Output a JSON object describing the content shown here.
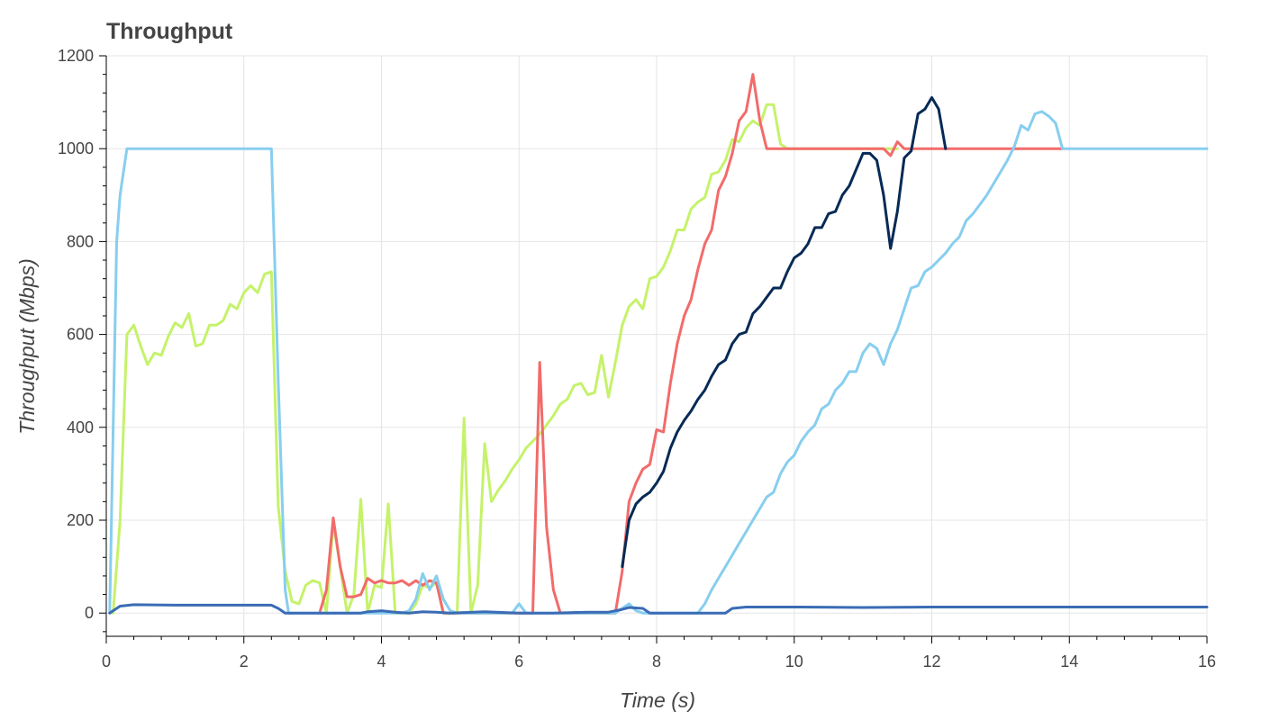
{
  "chart_data": {
    "type": "line",
    "title": "Throughput",
    "xlabel": "Time (s)",
    "ylabel": "Throughput (Mbps)",
    "xlim": [
      0,
      16
    ],
    "ylim": [
      -50,
      1200
    ],
    "xticks": [
      0,
      2,
      4,
      6,
      8,
      10,
      12,
      14,
      16
    ],
    "yticks": [
      0,
      200,
      400,
      600,
      800,
      1000,
      1200
    ],
    "grid": true,
    "legend": "none",
    "series": [
      {
        "color": "#c5f26a",
        "points": [
          [
            0.1,
            0
          ],
          [
            0.2,
            200
          ],
          [
            0.3,
            600
          ],
          [
            0.4,
            620
          ],
          [
            0.5,
            575
          ],
          [
            0.6,
            535
          ],
          [
            0.7,
            560
          ],
          [
            0.8,
            555
          ],
          [
            0.9,
            595
          ],
          [
            1.0,
            625
          ],
          [
            1.1,
            615
          ],
          [
            1.2,
            645
          ],
          [
            1.3,
            575
          ],
          [
            1.4,
            580
          ],
          [
            1.5,
            620
          ],
          [
            1.6,
            620
          ],
          [
            1.7,
            630
          ],
          [
            1.8,
            665
          ],
          [
            1.9,
            655
          ],
          [
            2.0,
            690
          ],
          [
            2.1,
            705
          ],
          [
            2.2,
            690
          ],
          [
            2.3,
            730
          ],
          [
            2.4,
            735
          ],
          [
            2.5,
            230
          ],
          [
            2.6,
            90
          ],
          [
            2.7,
            25
          ],
          [
            2.8,
            20
          ],
          [
            2.9,
            60
          ],
          [
            3.0,
            70
          ],
          [
            3.1,
            65
          ],
          [
            3.2,
            0
          ],
          [
            3.3,
            195
          ],
          [
            3.4,
            100
          ],
          [
            3.5,
            0
          ],
          [
            3.6,
            40
          ],
          [
            3.7,
            245
          ],
          [
            3.8,
            0
          ],
          [
            3.9,
            60
          ],
          [
            4.0,
            55
          ],
          [
            4.1,
            235
          ],
          [
            4.2,
            0
          ],
          [
            4.3,
            0
          ],
          [
            4.4,
            0
          ],
          [
            4.5,
            20
          ],
          [
            4.6,
            60
          ],
          [
            4.7,
            55
          ],
          [
            4.8,
            65
          ],
          [
            4.9,
            0
          ],
          [
            5.0,
            0
          ],
          [
            5.1,
            0
          ],
          [
            5.2,
            420
          ],
          [
            5.3,
            0
          ],
          [
            5.4,
            60
          ],
          [
            5.5,
            365
          ],
          [
            5.6,
            240
          ],
          [
            5.7,
            265
          ],
          [
            5.8,
            285
          ],
          [
            5.9,
            310
          ],
          [
            6.0,
            330
          ],
          [
            6.1,
            355
          ],
          [
            6.2,
            370
          ],
          [
            6.3,
            385
          ],
          [
            6.4,
            405
          ],
          [
            6.5,
            425
          ],
          [
            6.6,
            450
          ],
          [
            6.7,
            460
          ],
          [
            6.8,
            490
          ],
          [
            6.9,
            495
          ],
          [
            7.0,
            470
          ],
          [
            7.1,
            475
          ],
          [
            7.2,
            555
          ],
          [
            7.3,
            465
          ],
          [
            7.4,
            540
          ],
          [
            7.5,
            620
          ],
          [
            7.6,
            660
          ],
          [
            7.7,
            675
          ],
          [
            7.8,
            655
          ],
          [
            7.9,
            720
          ],
          [
            8.0,
            725
          ],
          [
            8.1,
            745
          ],
          [
            8.2,
            780
          ],
          [
            8.3,
            825
          ],
          [
            8.4,
            825
          ],
          [
            8.5,
            870
          ],
          [
            8.6,
            885
          ],
          [
            8.7,
            895
          ],
          [
            8.8,
            945
          ],
          [
            8.9,
            950
          ],
          [
            9.0,
            975
          ],
          [
            9.1,
            1020
          ],
          [
            9.2,
            1015
          ],
          [
            9.3,
            1045
          ],
          [
            9.4,
            1060
          ],
          [
            9.5,
            1050
          ],
          [
            9.6,
            1095
          ],
          [
            9.7,
            1095
          ],
          [
            9.8,
            1010
          ],
          [
            9.9,
            1000
          ],
          [
            11.5,
            1000
          ]
        ]
      },
      {
        "color": "#f26b6b",
        "points": [
          [
            3.1,
            0
          ],
          [
            3.2,
            50
          ],
          [
            3.3,
            205
          ],
          [
            3.4,
            100
          ],
          [
            3.5,
            35
          ],
          [
            3.6,
            35
          ],
          [
            3.7,
            40
          ],
          [
            3.8,
            75
          ],
          [
            3.9,
            65
          ],
          [
            4.0,
            70
          ],
          [
            4.1,
            65
          ],
          [
            4.2,
            65
          ],
          [
            4.3,
            70
          ],
          [
            4.4,
            60
          ],
          [
            4.5,
            70
          ],
          [
            4.6,
            60
          ],
          [
            4.7,
            70
          ],
          [
            4.8,
            65
          ],
          [
            4.9,
            0
          ],
          [
            6.2,
            0
          ],
          [
            6.3,
            540
          ],
          [
            6.4,
            185
          ],
          [
            6.5,
            50
          ],
          [
            6.6,
            0
          ],
          [
            7.4,
            0
          ],
          [
            7.5,
            90
          ],
          [
            7.6,
            240
          ],
          [
            7.7,
            280
          ],
          [
            7.8,
            310
          ],
          [
            7.9,
            320
          ],
          [
            8.0,
            395
          ],
          [
            8.1,
            390
          ],
          [
            8.2,
            495
          ],
          [
            8.3,
            580
          ],
          [
            8.4,
            640
          ],
          [
            8.5,
            675
          ],
          [
            8.6,
            740
          ],
          [
            8.7,
            795
          ],
          [
            8.8,
            825
          ],
          [
            8.9,
            910
          ],
          [
            9.0,
            940
          ],
          [
            9.1,
            990
          ],
          [
            9.2,
            1060
          ],
          [
            9.3,
            1080
          ],
          [
            9.4,
            1160
          ],
          [
            9.5,
            1060
          ],
          [
            9.6,
            1000
          ],
          [
            11.3,
            1000
          ],
          [
            11.4,
            985
          ],
          [
            11.5,
            1015
          ],
          [
            11.6,
            1000
          ],
          [
            12.0,
            1000
          ],
          [
            13.9,
            1000
          ]
        ]
      },
      {
        "color": "#062a55",
        "points": [
          [
            7.5,
            100
          ],
          [
            7.6,
            200
          ],
          [
            7.7,
            235
          ],
          [
            7.8,
            250
          ],
          [
            7.9,
            260
          ],
          [
            8.0,
            280
          ],
          [
            8.1,
            305
          ],
          [
            8.2,
            355
          ],
          [
            8.3,
            390
          ],
          [
            8.4,
            415
          ],
          [
            8.5,
            435
          ],
          [
            8.6,
            460
          ],
          [
            8.7,
            480
          ],
          [
            8.8,
            510
          ],
          [
            8.9,
            535
          ],
          [
            9.0,
            545
          ],
          [
            9.1,
            580
          ],
          [
            9.2,
            600
          ],
          [
            9.3,
            605
          ],
          [
            9.4,
            645
          ],
          [
            9.5,
            660
          ],
          [
            9.6,
            680
          ],
          [
            9.7,
            700
          ],
          [
            9.8,
            700
          ],
          [
            9.9,
            735
          ],
          [
            10.0,
            765
          ],
          [
            10.1,
            775
          ],
          [
            10.2,
            795
          ],
          [
            10.3,
            830
          ],
          [
            10.4,
            830
          ],
          [
            10.5,
            860
          ],
          [
            10.6,
            865
          ],
          [
            10.7,
            900
          ],
          [
            10.8,
            920
          ],
          [
            10.9,
            955
          ],
          [
            11.0,
            990
          ],
          [
            11.1,
            990
          ],
          [
            11.2,
            975
          ],
          [
            11.3,
            900
          ],
          [
            11.4,
            785
          ],
          [
            11.5,
            865
          ],
          [
            11.6,
            980
          ],
          [
            11.7,
            995
          ],
          [
            11.8,
            1075
          ],
          [
            11.9,
            1085
          ],
          [
            12.0,
            1110
          ],
          [
            12.1,
            1085
          ],
          [
            12.2,
            1000
          ]
        ]
      },
      {
        "color": "#87ceef",
        "points": [
          [
            0.05,
            0
          ],
          [
            0.15,
            800
          ],
          [
            0.2,
            900
          ],
          [
            0.3,
            1000
          ],
          [
            2.4,
            1000
          ],
          [
            2.5,
            500
          ],
          [
            2.6,
            50
          ],
          [
            2.65,
            0
          ],
          [
            4.3,
            0
          ],
          [
            4.4,
            5
          ],
          [
            4.5,
            30
          ],
          [
            4.6,
            85
          ],
          [
            4.7,
            50
          ],
          [
            4.8,
            80
          ],
          [
            4.9,
            30
          ],
          [
            5.0,
            5
          ],
          [
            5.1,
            0
          ],
          [
            5.9,
            0
          ],
          [
            6.0,
            20
          ],
          [
            6.1,
            0
          ],
          [
            7.4,
            0
          ],
          [
            7.5,
            10
          ],
          [
            7.6,
            20
          ],
          [
            7.7,
            5
          ],
          [
            7.8,
            0
          ],
          [
            8.6,
            0
          ],
          [
            8.7,
            20
          ],
          [
            8.8,
            50
          ],
          [
            8.9,
            75
          ],
          [
            9.0,
            100
          ],
          [
            9.1,
            125
          ],
          [
            9.2,
            150
          ],
          [
            9.3,
            175
          ],
          [
            9.4,
            200
          ],
          [
            9.5,
            225
          ],
          [
            9.6,
            250
          ],
          [
            9.7,
            260
          ],
          [
            9.8,
            300
          ],
          [
            9.9,
            325
          ],
          [
            10.0,
            340
          ],
          [
            10.1,
            370
          ],
          [
            10.2,
            390
          ],
          [
            10.3,
            405
          ],
          [
            10.4,
            440
          ],
          [
            10.5,
            450
          ],
          [
            10.6,
            480
          ],
          [
            10.7,
            495
          ],
          [
            10.8,
            520
          ],
          [
            10.9,
            520
          ],
          [
            11.0,
            560
          ],
          [
            11.1,
            580
          ],
          [
            11.2,
            570
          ],
          [
            11.3,
            535
          ],
          [
            11.4,
            580
          ],
          [
            11.5,
            610
          ],
          [
            11.6,
            655
          ],
          [
            11.7,
            700
          ],
          [
            11.8,
            705
          ],
          [
            11.9,
            735
          ],
          [
            12.0,
            745
          ],
          [
            12.1,
            760
          ],
          [
            12.2,
            775
          ],
          [
            12.3,
            795
          ],
          [
            12.4,
            810
          ],
          [
            12.5,
            845
          ],
          [
            12.6,
            860
          ],
          [
            12.7,
            880
          ],
          [
            12.8,
            900
          ],
          [
            12.9,
            925
          ],
          [
            13.0,
            950
          ],
          [
            13.1,
            975
          ],
          [
            13.2,
            1005
          ],
          [
            13.3,
            1050
          ],
          [
            13.4,
            1040
          ],
          [
            13.5,
            1075
          ],
          [
            13.6,
            1080
          ],
          [
            13.7,
            1070
          ],
          [
            13.8,
            1055
          ],
          [
            13.9,
            1000
          ],
          [
            16.0,
            1000
          ]
        ]
      },
      {
        "color": "#3a6cb5",
        "points": [
          [
            0.05,
            0
          ],
          [
            0.1,
            5
          ],
          [
            0.2,
            15
          ],
          [
            0.4,
            18
          ],
          [
            1.0,
            17
          ],
          [
            2.0,
            17
          ],
          [
            2.4,
            17
          ],
          [
            2.5,
            10
          ],
          [
            2.6,
            0
          ],
          [
            3.7,
            0
          ],
          [
            3.8,
            3
          ],
          [
            4.0,
            5
          ],
          [
            4.2,
            2
          ],
          [
            4.4,
            0
          ],
          [
            4.6,
            3
          ],
          [
            4.8,
            2
          ],
          [
            5.0,
            0
          ],
          [
            5.5,
            3
          ],
          [
            6.0,
            0
          ],
          [
            6.5,
            0
          ],
          [
            7.0,
            2
          ],
          [
            7.3,
            2
          ],
          [
            7.5,
            8
          ],
          [
            7.6,
            12
          ],
          [
            7.8,
            10
          ],
          [
            7.9,
            0
          ],
          [
            8.5,
            0
          ],
          [
            9.0,
            0
          ],
          [
            9.1,
            10
          ],
          [
            9.3,
            13
          ],
          [
            10.0,
            13
          ],
          [
            11.0,
            12
          ],
          [
            12.0,
            13
          ],
          [
            13.0,
            13
          ],
          [
            14.0,
            13
          ],
          [
            16.0,
            13
          ]
        ]
      }
    ]
  }
}
